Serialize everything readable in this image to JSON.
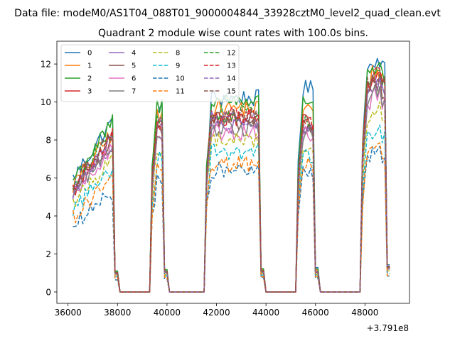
{
  "chart_data": {
    "type": "line",
    "suptitle": "Data file: modeM0/AS1T04_088T01_9000004844_33928cztM0_level2_quad_clean.evt",
    "title": "Quadrant 2 module wise count rates with 100.0s bins.",
    "xlabel": "",
    "ylabel": "",
    "x_offset_label": "+3.791e8",
    "xlim": [
      35550,
      49800
    ],
    "ylim": [
      -0.6,
      13.2
    ],
    "xticks": [
      36000,
      38000,
      40000,
      42000,
      44000,
      46000,
      48000
    ],
    "xtick_labels": [
      "36000",
      "38000",
      "40000",
      "42000",
      "44000",
      "46000",
      "48000"
    ],
    "yticks": [
      0,
      2,
      4,
      6,
      8,
      10,
      12
    ],
    "ytick_labels": [
      "0",
      "2",
      "4",
      "6",
      "8",
      "10",
      "12"
    ],
    "grid": false,
    "legend_position": "top-left",
    "legend_columns": 4,
    "segments": [
      [
        36200,
        37900,
        38000
      ],
      [
        39400,
        39600,
        40000
      ],
      [
        41600,
        41800,
        43900
      ],
      [
        45300,
        45500,
        46100
      ],
      [
        47900,
        48100,
        49000
      ]
    ],
    "series": [
      {
        "name": "0",
        "color": "#1f77b4",
        "dash": "solid",
        "levels": [
          9.2,
          9.7,
          10.2,
          10.7,
          11.9
        ]
      },
      {
        "name": "1",
        "color": "#ff7f0e",
        "dash": "solid",
        "levels": [
          8.6,
          9.2,
          9.7,
          9.6,
          11.2
        ]
      },
      {
        "name": "2",
        "color": "#2ca02c",
        "dash": "solid",
        "levels": [
          9.1,
          9.8,
          10.1,
          10.1,
          11.3
        ]
      },
      {
        "name": "3",
        "color": "#d62728",
        "dash": "solid",
        "levels": [
          8.2,
          8.6,
          9.2,
          8.9,
          10.8
        ]
      },
      {
        "name": "4",
        "color": "#9467bd",
        "dash": "solid",
        "levels": [
          8.0,
          8.5,
          8.7,
          8.6,
          10.4
        ]
      },
      {
        "name": "5",
        "color": "#8c564b",
        "dash": "solid",
        "levels": [
          8.3,
          8.7,
          8.9,
          8.5,
          10.6
        ]
      },
      {
        "name": "6",
        "color": "#e377c2",
        "dash": "solid",
        "levels": [
          7.7,
          8.3,
          8.4,
          8.3,
          10.0
        ]
      },
      {
        "name": "7",
        "color": "#7f7f7f",
        "dash": "solid",
        "levels": [
          7.9,
          8.4,
          8.6,
          8.3,
          10.1
        ]
      },
      {
        "name": "8",
        "color": "#bcbd22",
        "dash": "dashed",
        "levels": [
          7.2,
          7.6,
          8.0,
          7.6,
          9.3
        ]
      },
      {
        "name": "9",
        "color": "#17becf",
        "dash": "dashed",
        "levels": [
          6.7,
          7.1,
          7.4,
          7.1,
          8.1
        ]
      },
      {
        "name": "10",
        "color": "#1f77b4",
        "dash": "dashed",
        "levels": [
          5.3,
          5.8,
          6.4,
          6.2,
          7.0
        ]
      },
      {
        "name": "11",
        "color": "#ff7f0e",
        "dash": "dashed",
        "levels": [
          6.1,
          6.5,
          6.7,
          6.7,
          7.2
        ]
      },
      {
        "name": "12",
        "color": "#2ca02c",
        "dash": "dashed",
        "levels": [
          8.6,
          9.1,
          9.4,
          8.9,
          11.0
        ]
      },
      {
        "name": "13",
        "color": "#d62728",
        "dash": "dashed",
        "levels": [
          8.4,
          8.9,
          9.3,
          8.8,
          11.1
        ]
      },
      {
        "name": "14",
        "color": "#9467bd",
        "dash": "dashed",
        "levels": [
          8.2,
          8.8,
          9.1,
          8.7,
          10.7
        ]
      },
      {
        "name": "15",
        "color": "#8c564b",
        "dash": "dashed",
        "levels": [
          8.5,
          9.0,
          9.2,
          8.8,
          10.9
        ]
      }
    ]
  }
}
